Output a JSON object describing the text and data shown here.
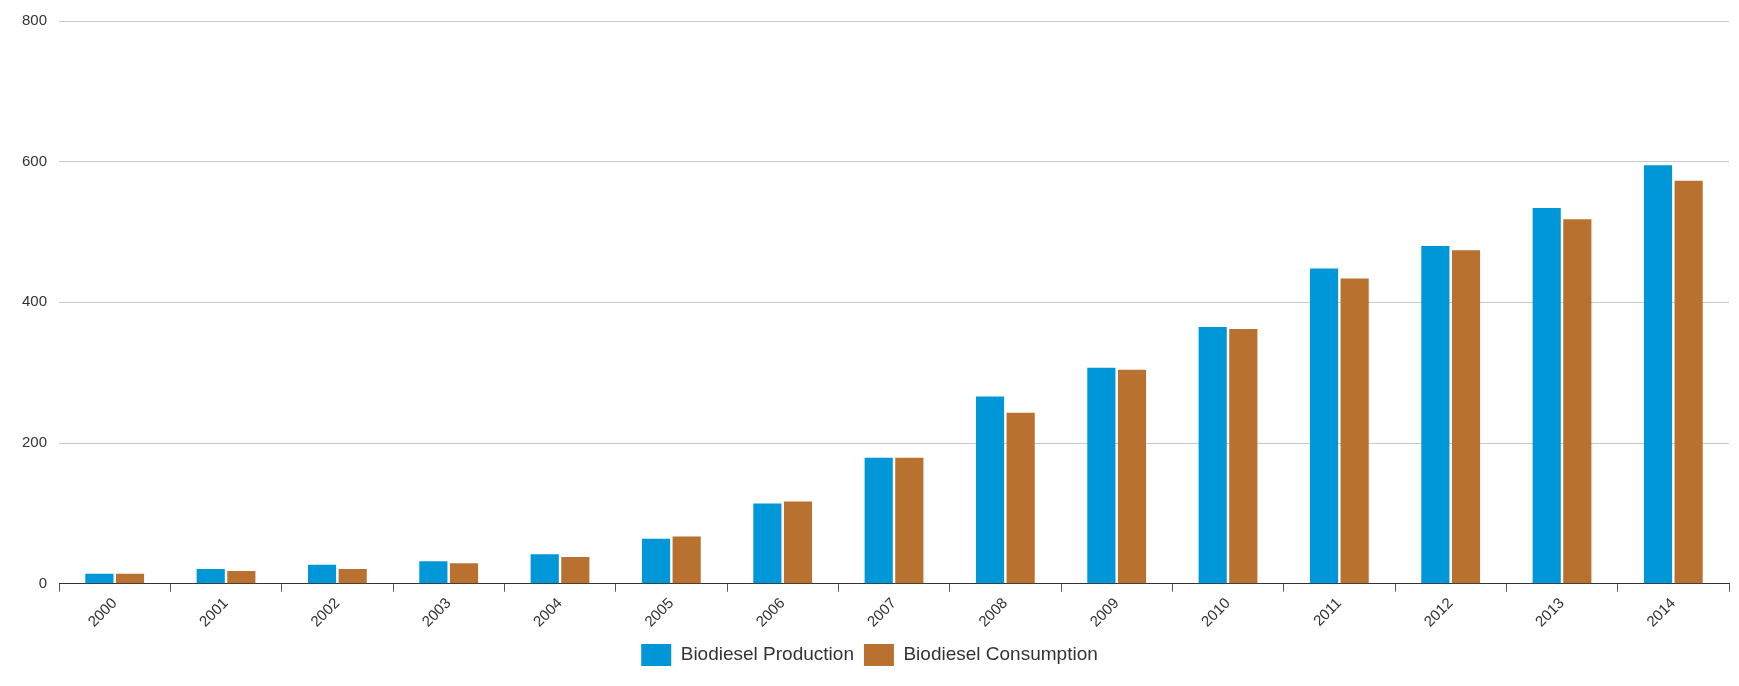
{
  "chart_data": {
    "type": "bar",
    "categories": [
      "2000",
      "2001",
      "2002",
      "2003",
      "2004",
      "2005",
      "2006",
      "2007",
      "2008",
      "2009",
      "2010",
      "2011",
      "2012",
      "2013",
      "2014"
    ],
    "series": [
      {
        "name": "Biodiesel Production",
        "color": "#0097d8",
        "values": [
          14,
          21,
          27,
          32,
          42,
          64,
          114,
          179,
          266,
          307,
          365,
          448,
          480,
          534,
          595
        ]
      },
      {
        "name": "Biodiesel Consumption",
        "color": "#b8712f",
        "values": [
          14,
          18,
          21,
          29,
          38,
          67,
          117,
          179,
          243,
          304,
          362,
          434,
          474,
          518,
          573
        ]
      }
    ],
    "ylim": [
      0,
      800
    ],
    "yticks": [
      0,
      200,
      400,
      600,
      800
    ],
    "grid": "y",
    "legend": "bottom"
  }
}
